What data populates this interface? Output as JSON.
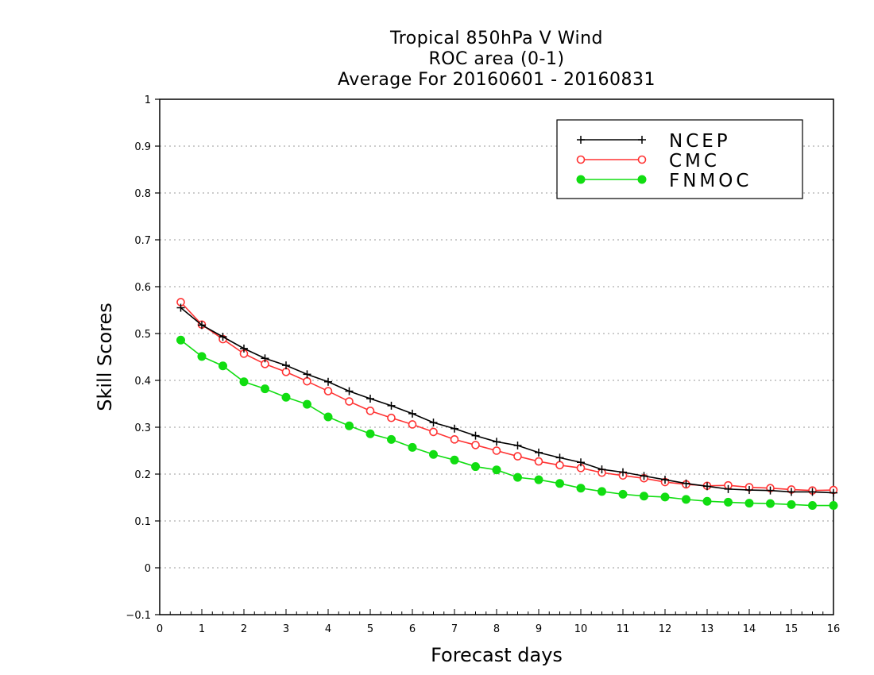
{
  "chart_data": {
    "type": "line",
    "title_lines": [
      "Tropical 850hPa V Wind",
      "ROC area (0-1)",
      "Average For 20160601 - 20160831"
    ],
    "xlabel": "Forecast days",
    "ylabel": "Skill Scores",
    "xlim": [
      0,
      16
    ],
    "ylim": [
      -0.1,
      1
    ],
    "x_ticks": [
      0,
      1,
      2,
      3,
      4,
      5,
      6,
      7,
      8,
      9,
      10,
      11,
      12,
      13,
      14,
      15,
      16
    ],
    "y_ticks": [
      -0.1,
      0,
      0.1,
      0.2,
      0.3,
      0.4,
      0.5,
      0.6,
      0.7,
      0.8,
      0.9,
      1
    ],
    "y_tick_labels": [
      "−0.1",
      "0",
      "0.1",
      "0.2",
      "0.3",
      "0.4",
      "0.5",
      "0.6",
      "0.7",
      "0.8",
      "0.9",
      "1"
    ],
    "grid": "horizontal dotted",
    "legend_position": "top-right",
    "x": [
      0.5,
      1,
      1.5,
      2,
      2.5,
      3,
      3.5,
      4,
      4.5,
      5,
      5.5,
      6,
      6.5,
      7,
      7.5,
      8,
      8.5,
      9,
      9.5,
      10,
      10.5,
      11,
      11.5,
      12,
      12.5,
      13,
      13.5,
      14,
      14.5,
      15,
      15.5,
      16
    ],
    "series": [
      {
        "name": "NCEP",
        "color": "#000000",
        "marker": "plus",
        "values": [
          0.555,
          0.518,
          0.493,
          0.468,
          0.447,
          0.432,
          0.413,
          0.397,
          0.377,
          0.361,
          0.346,
          0.329,
          0.31,
          0.297,
          0.282,
          0.269,
          0.261,
          0.246,
          0.235,
          0.225,
          0.21,
          0.204,
          0.196,
          0.188,
          0.18,
          0.174,
          0.168,
          0.166,
          0.165,
          0.162,
          0.162,
          0.16
        ]
      },
      {
        "name": "CMC",
        "color": "#ff3333",
        "marker": "open-circle",
        "values": [
          0.567,
          0.519,
          0.488,
          0.457,
          0.435,
          0.418,
          0.398,
          0.377,
          0.355,
          0.335,
          0.32,
          0.306,
          0.29,
          0.274,
          0.262,
          0.25,
          0.238,
          0.227,
          0.219,
          0.213,
          0.203,
          0.197,
          0.191,
          0.183,
          0.178,
          0.175,
          0.176,
          0.172,
          0.17,
          0.167,
          0.165,
          0.166
        ]
      },
      {
        "name": "FNMOC",
        "color": "#11dd11",
        "marker": "filled-circle",
        "values": [
          0.486,
          0.451,
          0.431,
          0.397,
          0.382,
          0.364,
          0.349,
          0.322,
          0.303,
          0.286,
          0.274,
          0.257,
          0.242,
          0.23,
          0.216,
          0.209,
          0.193,
          0.188,
          0.18,
          0.17,
          0.163,
          0.157,
          0.153,
          0.151,
          0.146,
          0.142,
          0.14,
          0.138,
          0.137,
          0.135,
          0.133,
          0.133
        ]
      }
    ]
  }
}
